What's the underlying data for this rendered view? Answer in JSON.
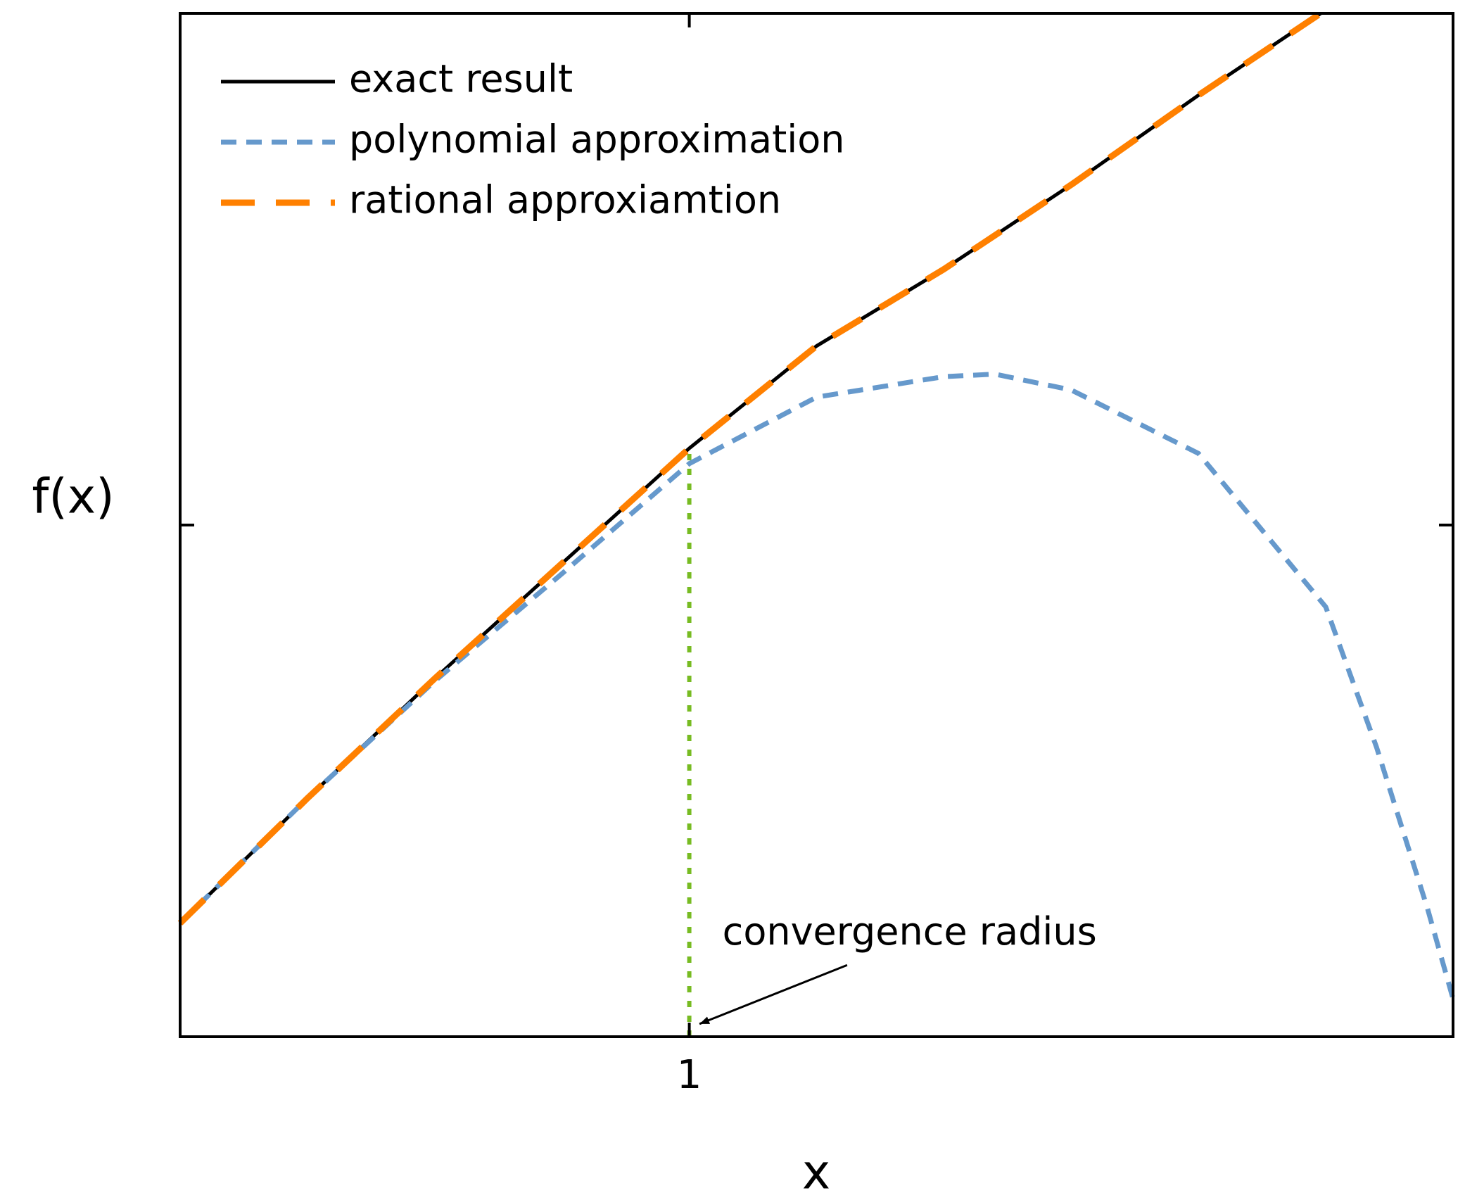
{
  "chart_data": {
    "type": "line",
    "xlabel": "x",
    "ylabel": "f(x)",
    "xlim": [
      0,
      2.5
    ],
    "ylim": [
      0,
      2
    ],
    "xticks": [
      1
    ],
    "yticks": [
      1
    ],
    "show_ytick_labels": false,
    "legend": "upper left",
    "series": [
      {
        "name": "exact result",
        "color": "#000000",
        "linestyle": "solid",
        "x": [
          0,
          0.25,
          0.5,
          0.75,
          1,
          1.25,
          1.5,
          1.75,
          2,
          2.24
        ],
        "values": [
          0.222,
          0.466,
          0.7,
          0.925,
          1.15,
          1.35,
          1.5,
          1.665,
          1.84,
          2.0
        ]
      },
      {
        "name": "polynomial approximation",
        "color": "#6699cc",
        "linestyle": "dotted",
        "x": [
          0,
          0.25,
          0.5,
          0.75,
          1,
          1.25,
          1.5,
          1.6,
          1.75,
          2,
          2.25,
          2.35,
          2.45,
          2.5
        ],
        "values": [
          0.222,
          0.466,
          0.695,
          0.905,
          1.12,
          1.25,
          1.29,
          1.295,
          1.264,
          1.14,
          0.84,
          0.565,
          0.25,
          0.074
        ]
      },
      {
        "name": "rational approxiamtion",
        "color": "#ff8000",
        "linestyle": "dashed",
        "x": [
          0,
          0.25,
          0.5,
          0.75,
          1,
          1.25,
          1.5,
          1.75,
          2,
          2.24
        ],
        "values": [
          0.222,
          0.466,
          0.7,
          0.925,
          1.15,
          1.35,
          1.5,
          1.665,
          1.84,
          2.0
        ]
      }
    ],
    "vline": {
      "x": 1,
      "ymax": 1.15,
      "color": "#77bb22"
    },
    "annotation": {
      "text": "convergence radius",
      "x": 1.065,
      "y": 0.2,
      "arrow_from": [
        1.31,
        0.14
      ],
      "arrow_to": [
        1.02,
        0.025
      ]
    }
  }
}
